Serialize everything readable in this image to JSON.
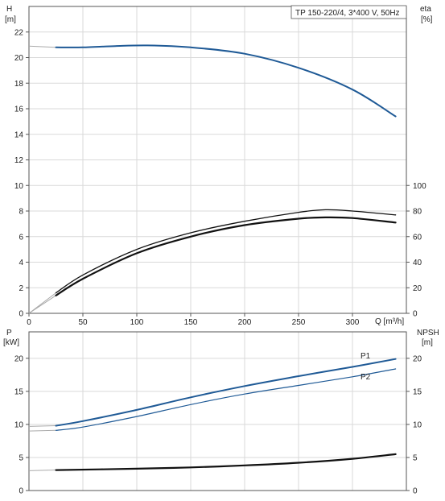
{
  "colors": {
    "blue": "#1f5a96",
    "black": "#111111",
    "grid": "#d9d9d9",
    "axis": "#555555",
    "gray": "#aaaaaa"
  },
  "chart_data": [
    {
      "type": "line",
      "title": "TP 150-220/4, 3*400 V, 50Hz",
      "xlabel": "Q [m³/h]",
      "ylabel_top": "H",
      "ylabel_unit": "[m]",
      "y2label_top": "eta",
      "y2label_unit": "[%]",
      "xlim": [
        0,
        350
      ],
      "ylim": [
        0,
        24
      ],
      "y2lim": [
        0,
        240
      ],
      "x_ticks": [
        "0",
        "50",
        "100",
        "150",
        "200",
        "250",
        "300"
      ],
      "y_ticks": [
        "0",
        "2",
        "4",
        "6",
        "8",
        "10",
        "12",
        "14",
        "16",
        "18",
        "20",
        "22"
      ],
      "y2_ticks": [
        "0",
        "20",
        "40",
        "60",
        "80",
        "100"
      ],
      "grid": true,
      "series": [
        {
          "axis": "left",
          "color": "blue",
          "x": [
            25,
            50,
            80,
            110,
            150,
            200,
            250,
            300,
            340
          ],
          "y": [
            20.8,
            20.8,
            20.9,
            20.95,
            20.8,
            20.3,
            19.2,
            17.5,
            15.4
          ]
        },
        {
          "axis": "right",
          "color": "black",
          "x": [
            25,
            50,
            100,
            150,
            200,
            250,
            275,
            300,
            340
          ],
          "y": [
            16,
            30,
            50,
            63,
            72,
            79,
            81,
            80,
            77
          ]
        },
        {
          "axis": "right",
          "color": "black",
          "x": [
            25,
            50,
            100,
            150,
            200,
            250,
            275,
            300,
            340
          ],
          "y": [
            14,
            27,
            47,
            60,
            69,
            74,
            75,
            74.5,
            71
          ]
        }
      ]
    },
    {
      "type": "line",
      "xlabel": "",
      "ylabel_top": "P",
      "ylabel_unit": "[kW]",
      "y2label_top": "NPSH",
      "y2label_unit": "[m]",
      "xlim": [
        0,
        350
      ],
      "ylim": [
        0,
        24
      ],
      "y2lim": [
        0,
        24
      ],
      "x_ticks": [],
      "y_ticks": [
        "0",
        "5",
        "10",
        "15",
        "20"
      ],
      "y2_ticks": [
        "0",
        "5",
        "10",
        "15",
        "20"
      ],
      "grid": true,
      "series": [
        {
          "name": "P1",
          "axis": "left",
          "color": "blue",
          "x": [
            25,
            50,
            100,
            150,
            200,
            250,
            300,
            340
          ],
          "y": [
            9.8,
            10.5,
            12.2,
            14.1,
            15.8,
            17.3,
            18.7,
            19.9
          ]
        },
        {
          "name": "P2",
          "axis": "left",
          "color": "blue",
          "x": [
            25,
            50,
            100,
            150,
            200,
            250,
            300,
            340
          ],
          "y": [
            9.1,
            9.6,
            11.2,
            13.0,
            14.6,
            15.9,
            17.2,
            18.4
          ]
        },
        {
          "axis": "right",
          "color": "black",
          "x": [
            25,
            100,
            150,
            200,
            250,
            300,
            340
          ],
          "y": [
            3.1,
            3.3,
            3.5,
            3.8,
            4.2,
            4.8,
            5.5
          ]
        }
      ]
    }
  ]
}
